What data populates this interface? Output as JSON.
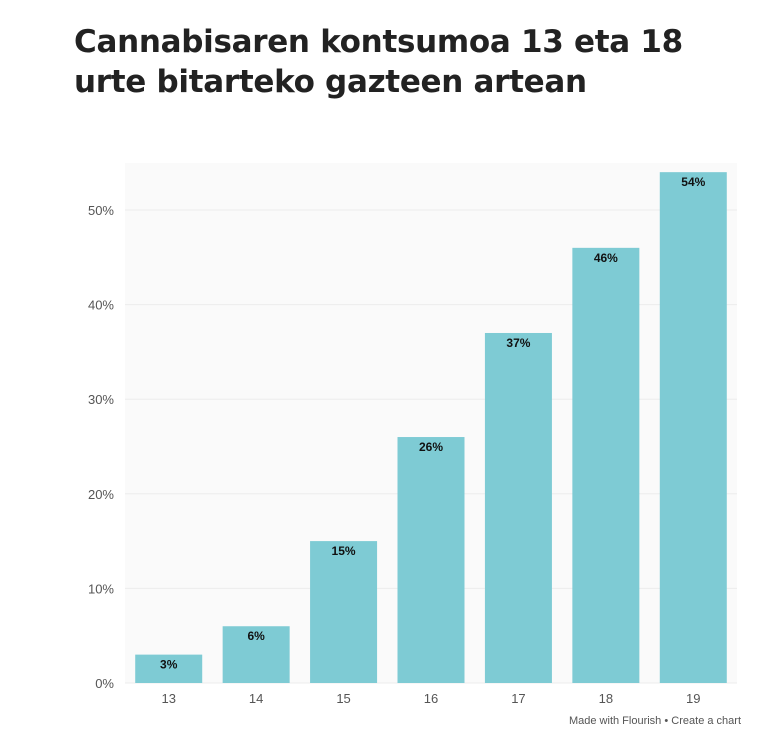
{
  "title": "Cannabisaren kontsumoa 13 eta 18 urte bitarteko gazteen artean",
  "colors": {
    "bar": "#7ecbd4",
    "plot_bg": "#fafafa",
    "grid": "#ececec",
    "tick_text": "#555555",
    "label_text": "#111111"
  },
  "chart_data": {
    "type": "bar",
    "title": "Cannabisaren kontsumoa 13 eta 18 urte bitarteko gazteen artean",
    "categories": [
      "13",
      "14",
      "15",
      "16",
      "17",
      "18",
      "19"
    ],
    "values": [
      3,
      6,
      15,
      26,
      37,
      46,
      54
    ],
    "labels": [
      "3%",
      "6%",
      "15%",
      "26%",
      "37%",
      "46%",
      "54%"
    ],
    "y_ticks": [
      0,
      10,
      20,
      30,
      40,
      50
    ],
    "y_tick_labels": [
      "0%",
      "10%",
      "20%",
      "30%",
      "40%",
      "50%"
    ],
    "ylim": [
      0,
      56
    ],
    "xlabel": "",
    "ylabel": "",
    "grid": true
  },
  "footer": {
    "made_with": "Made with Flourish",
    "separator": "•",
    "create": "Create a chart"
  }
}
